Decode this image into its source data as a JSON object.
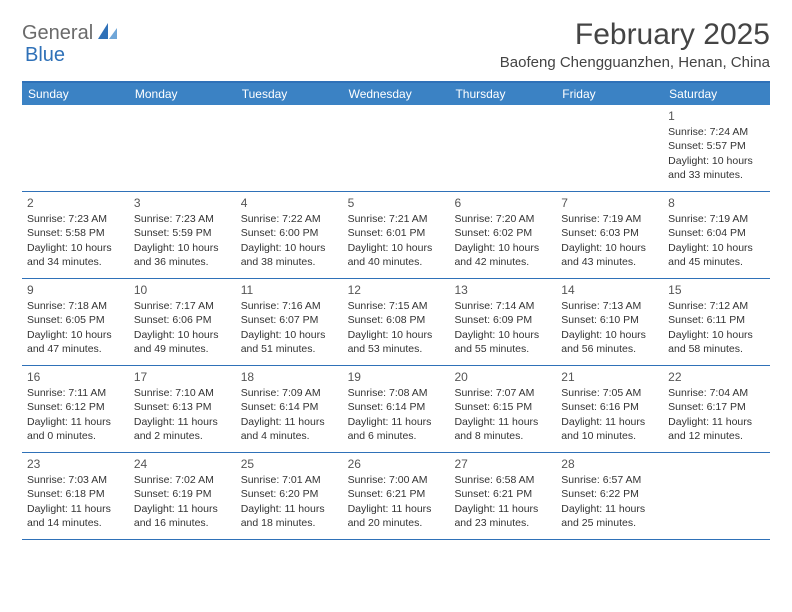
{
  "logo": {
    "general": "General",
    "blue": "Blue"
  },
  "title": "February 2025",
  "location": "Baofeng Chengguanzhen, Henan, China",
  "colors": {
    "header_bg": "#3b82c4",
    "border": "#2f71b8",
    "text": "#333333",
    "title_text": "#444444"
  },
  "day_headers": [
    "Sunday",
    "Monday",
    "Tuesday",
    "Wednesday",
    "Thursday",
    "Friday",
    "Saturday"
  ],
  "weeks": [
    [
      null,
      null,
      null,
      null,
      null,
      null,
      {
        "n": "1",
        "sr": "Sunrise: 7:24 AM",
        "ss": "Sunset: 5:57 PM",
        "dl": "Daylight: 10 hours and 33 minutes."
      }
    ],
    [
      {
        "n": "2",
        "sr": "Sunrise: 7:23 AM",
        "ss": "Sunset: 5:58 PM",
        "dl": "Daylight: 10 hours and 34 minutes."
      },
      {
        "n": "3",
        "sr": "Sunrise: 7:23 AM",
        "ss": "Sunset: 5:59 PM",
        "dl": "Daylight: 10 hours and 36 minutes."
      },
      {
        "n": "4",
        "sr": "Sunrise: 7:22 AM",
        "ss": "Sunset: 6:00 PM",
        "dl": "Daylight: 10 hours and 38 minutes."
      },
      {
        "n": "5",
        "sr": "Sunrise: 7:21 AM",
        "ss": "Sunset: 6:01 PM",
        "dl": "Daylight: 10 hours and 40 minutes."
      },
      {
        "n": "6",
        "sr": "Sunrise: 7:20 AM",
        "ss": "Sunset: 6:02 PM",
        "dl": "Daylight: 10 hours and 42 minutes."
      },
      {
        "n": "7",
        "sr": "Sunrise: 7:19 AM",
        "ss": "Sunset: 6:03 PM",
        "dl": "Daylight: 10 hours and 43 minutes."
      },
      {
        "n": "8",
        "sr": "Sunrise: 7:19 AM",
        "ss": "Sunset: 6:04 PM",
        "dl": "Daylight: 10 hours and 45 minutes."
      }
    ],
    [
      {
        "n": "9",
        "sr": "Sunrise: 7:18 AM",
        "ss": "Sunset: 6:05 PM",
        "dl": "Daylight: 10 hours and 47 minutes."
      },
      {
        "n": "10",
        "sr": "Sunrise: 7:17 AM",
        "ss": "Sunset: 6:06 PM",
        "dl": "Daylight: 10 hours and 49 minutes."
      },
      {
        "n": "11",
        "sr": "Sunrise: 7:16 AM",
        "ss": "Sunset: 6:07 PM",
        "dl": "Daylight: 10 hours and 51 minutes."
      },
      {
        "n": "12",
        "sr": "Sunrise: 7:15 AM",
        "ss": "Sunset: 6:08 PM",
        "dl": "Daylight: 10 hours and 53 minutes."
      },
      {
        "n": "13",
        "sr": "Sunrise: 7:14 AM",
        "ss": "Sunset: 6:09 PM",
        "dl": "Daylight: 10 hours and 55 minutes."
      },
      {
        "n": "14",
        "sr": "Sunrise: 7:13 AM",
        "ss": "Sunset: 6:10 PM",
        "dl": "Daylight: 10 hours and 56 minutes."
      },
      {
        "n": "15",
        "sr": "Sunrise: 7:12 AM",
        "ss": "Sunset: 6:11 PM",
        "dl": "Daylight: 10 hours and 58 minutes."
      }
    ],
    [
      {
        "n": "16",
        "sr": "Sunrise: 7:11 AM",
        "ss": "Sunset: 6:12 PM",
        "dl": "Daylight: 11 hours and 0 minutes."
      },
      {
        "n": "17",
        "sr": "Sunrise: 7:10 AM",
        "ss": "Sunset: 6:13 PM",
        "dl": "Daylight: 11 hours and 2 minutes."
      },
      {
        "n": "18",
        "sr": "Sunrise: 7:09 AM",
        "ss": "Sunset: 6:14 PM",
        "dl": "Daylight: 11 hours and 4 minutes."
      },
      {
        "n": "19",
        "sr": "Sunrise: 7:08 AM",
        "ss": "Sunset: 6:14 PM",
        "dl": "Daylight: 11 hours and 6 minutes."
      },
      {
        "n": "20",
        "sr": "Sunrise: 7:07 AM",
        "ss": "Sunset: 6:15 PM",
        "dl": "Daylight: 11 hours and 8 minutes."
      },
      {
        "n": "21",
        "sr": "Sunrise: 7:05 AM",
        "ss": "Sunset: 6:16 PM",
        "dl": "Daylight: 11 hours and 10 minutes."
      },
      {
        "n": "22",
        "sr": "Sunrise: 7:04 AM",
        "ss": "Sunset: 6:17 PM",
        "dl": "Daylight: 11 hours and 12 minutes."
      }
    ],
    [
      {
        "n": "23",
        "sr": "Sunrise: 7:03 AM",
        "ss": "Sunset: 6:18 PM",
        "dl": "Daylight: 11 hours and 14 minutes."
      },
      {
        "n": "24",
        "sr": "Sunrise: 7:02 AM",
        "ss": "Sunset: 6:19 PM",
        "dl": "Daylight: 11 hours and 16 minutes."
      },
      {
        "n": "25",
        "sr": "Sunrise: 7:01 AM",
        "ss": "Sunset: 6:20 PM",
        "dl": "Daylight: 11 hours and 18 minutes."
      },
      {
        "n": "26",
        "sr": "Sunrise: 7:00 AM",
        "ss": "Sunset: 6:21 PM",
        "dl": "Daylight: 11 hours and 20 minutes."
      },
      {
        "n": "27",
        "sr": "Sunrise: 6:58 AM",
        "ss": "Sunset: 6:21 PM",
        "dl": "Daylight: 11 hours and 23 minutes."
      },
      {
        "n": "28",
        "sr": "Sunrise: 6:57 AM",
        "ss": "Sunset: 6:22 PM",
        "dl": "Daylight: 11 hours and 25 minutes."
      },
      null
    ]
  ]
}
